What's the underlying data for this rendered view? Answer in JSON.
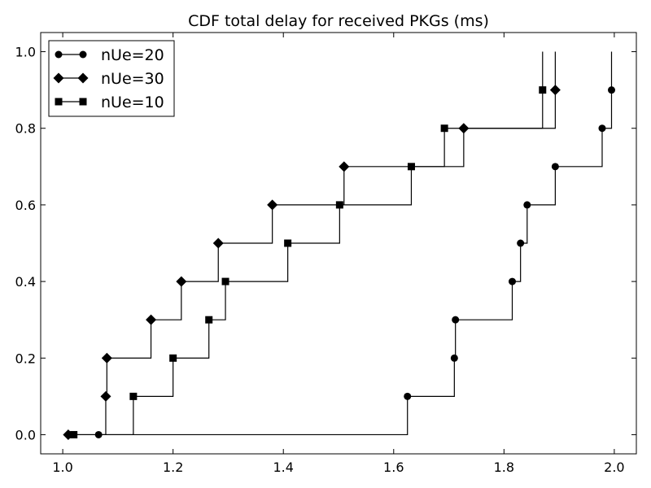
{
  "chart_data": {
    "type": "line",
    "step": "post",
    "title": "CDF total delay for received PKGs (ms)",
    "xlabel": "",
    "ylabel": "",
    "xlim": [
      0.96,
      2.04
    ],
    "ylim": [
      -0.05,
      1.05
    ],
    "xticks": [
      1.0,
      1.2,
      1.4,
      1.6,
      1.8,
      2.0
    ],
    "xtick_labels": [
      "1.0",
      "1.2",
      "1.4",
      "1.6",
      "1.8",
      "2.0"
    ],
    "yticks": [
      0.0,
      0.2,
      0.4,
      0.6,
      0.8,
      1.0
    ],
    "ytick_labels": [
      "0.0",
      "0.2",
      "0.4",
      "0.6",
      "0.8",
      "1.0"
    ],
    "grid": false,
    "legend_position": "top-left",
    "series": [
      {
        "name": "nUe=20",
        "marker": "circle",
        "x": [
          1.065,
          1.625,
          1.71,
          1.712,
          1.815,
          1.83,
          1.842,
          1.893,
          1.978,
          1.995
        ],
        "y": [
          0.0,
          0.1,
          0.2,
          0.3,
          0.4,
          0.5,
          0.6,
          0.7,
          0.8,
          0.9
        ]
      },
      {
        "name": "nUe=30",
        "marker": "diamond",
        "x": [
          1.01,
          1.078,
          1.08,
          1.16,
          1.215,
          1.282,
          1.38,
          1.51,
          1.727,
          1.893
        ],
        "y": [
          0.0,
          0.1,
          0.2,
          0.3,
          0.4,
          0.5,
          0.6,
          0.7,
          0.8,
          0.9
        ]
      },
      {
        "name": "nUe=10",
        "marker": "square",
        "x": [
          1.02,
          1.128,
          1.2,
          1.265,
          1.295,
          1.408,
          1.502,
          1.632,
          1.692,
          1.87
        ],
        "y": [
          0.0,
          0.1,
          0.2,
          0.3,
          0.4,
          0.5,
          0.6,
          0.7,
          0.8,
          0.9
        ]
      }
    ]
  }
}
